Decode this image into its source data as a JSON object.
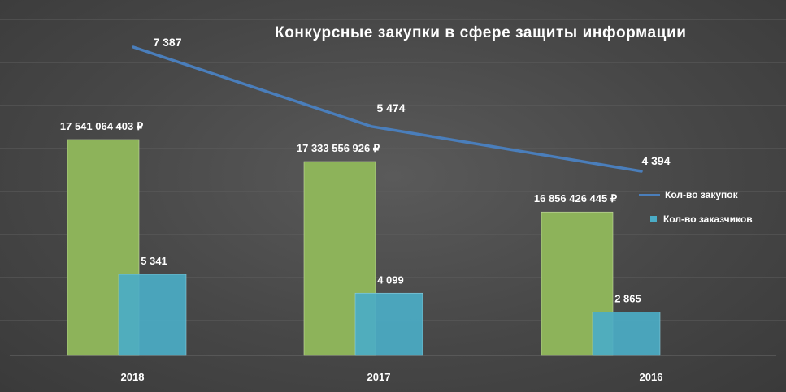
{
  "title": "Конкурсные закупки в сфере защиты информации",
  "legend": {
    "line_label": "Кол-во закупок",
    "bar_label": "Кол-во заказчиков"
  },
  "colors": {
    "sum_bar": "#8db35a",
    "customers_bar": "#4bacc6",
    "line": "#4a7ebb",
    "background": "#474747"
  },
  "chart_data": {
    "type": "bar",
    "categories": [
      "2018",
      "2017",
      "2016"
    ],
    "series": [
      {
        "kind": "bar",
        "values": [
          17541064403,
          17333556926,
          16856426445
        ],
        "labels": [
          "17 541 064 403 ₽",
          "17 333 556 926 ₽",
          "16 856 426 445 ₽"
        ]
      },
      {
        "name": "Кол-во заказчиков",
        "kind": "bar",
        "values": [
          5341,
          4099,
          2865
        ],
        "labels": [
          "5 341",
          "4 099",
          "2 865"
        ]
      },
      {
        "name": "Кол-во закупок",
        "kind": "line",
        "values": [
          7387,
          5474,
          4394
        ],
        "labels": [
          "7 387",
          "5 474",
          "4 394"
        ]
      }
    ],
    "grid": true,
    "legend_position": "right"
  }
}
